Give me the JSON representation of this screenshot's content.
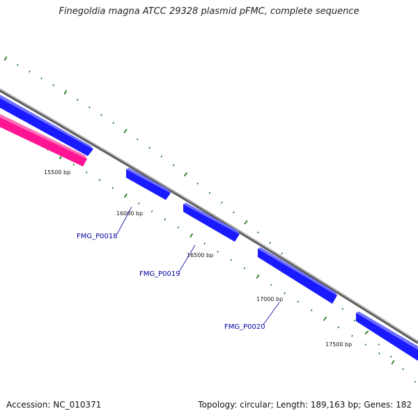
{
  "title": "Finegoldia magna ATCC 29328 plasmid pFMC, complete sequence",
  "footer": {
    "accession": "Accession: NC_010371",
    "stats": "Topology: circular; Length: 189,163 bp; Genes: 182"
  },
  "colors": {
    "backbone": "#8c8c8c",
    "forward_gene": "#1a1aff",
    "reverse_gene": "#ff1493",
    "tick": "#1e7a1e",
    "gene_label": "#0000a0",
    "bp_label": "#111111"
  },
  "bp_labels": [
    "15500 bp",
    "16000 bp",
    "16500 bp",
    "17000 bp",
    "17500 bp"
  ],
  "gene_labels": [
    "FMG_P0018",
    "FMG_P0019",
    "FMG_P0020"
  ]
}
